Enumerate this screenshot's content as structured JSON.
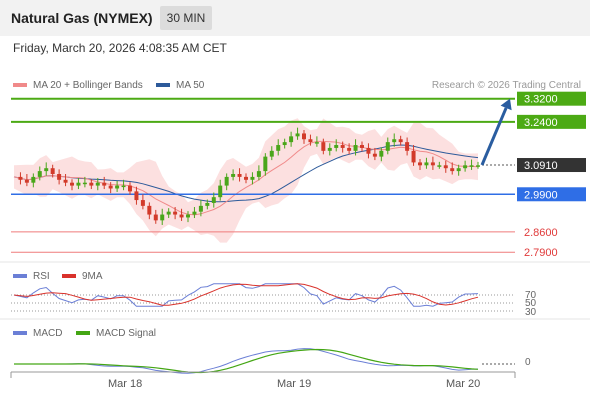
{
  "header": {
    "title": "Natural Gas (NYMEX)",
    "timeframe": "30 MIN"
  },
  "datetime": "Friday, March 20, 2026 4:08:35 AM CET",
  "legend": {
    "ma20_bb": "MA 20 + Bollinger Bands",
    "ma50": "MA 50",
    "credit": "Research © 2026 Trading Central"
  },
  "rsi_legend": {
    "rsi": "RSI",
    "ma9": "9MA"
  },
  "macd_legend": {
    "macd": "MACD",
    "signal": "MACD Signal"
  },
  "colors": {
    "ma20": "#f08a8a",
    "ma50": "#2d5a9a",
    "bb_fill": "#fbdada",
    "target": "#4caa14",
    "pivot": "#2f6ee6",
    "support": "#ef7b7b",
    "current": "#333333",
    "rsi": "#6b7fd6",
    "rsi_ma": "#d9322b",
    "macd": "#6b7fd6",
    "macd_signal": "#44a614",
    "bull": "#4aa61a",
    "bear": "#d23a2a",
    "arrow": "#2a5da0"
  },
  "chart_data": {
    "type": "candlestick",
    "x_ticks": [
      "Mar 18",
      "Mar 19",
      "Mar 20"
    ],
    "price_range": [
      2.77,
      3.35
    ],
    "levels": [
      {
        "value": 3.32,
        "label": "3.3200",
        "kind": "target"
      },
      {
        "value": 3.24,
        "label": "3.2400",
        "kind": "target"
      },
      {
        "value": 3.091,
        "label": "3.0910",
        "kind": "current"
      },
      {
        "value": 2.99,
        "label": "2.9900",
        "kind": "pivot"
      },
      {
        "value": 2.86,
        "label": "2.8600",
        "kind": "support"
      },
      {
        "value": 2.79,
        "label": "2.7900",
        "kind": "support"
      }
    ],
    "close_path": [
      3.05,
      3.04,
      3.03,
      3.05,
      3.07,
      3.08,
      3.06,
      3.04,
      3.03,
      3.02,
      3.03,
      3.03,
      3.02,
      3.03,
      3.02,
      3.01,
      3.02,
      3.02,
      3.0,
      2.97,
      2.95,
      2.92,
      2.9,
      2.92,
      2.93,
      2.92,
      2.91,
      2.92,
      2.93,
      2.95,
      2.96,
      2.98,
      3.02,
      3.05,
      3.06,
      3.05,
      3.04,
      3.05,
      3.07,
      3.12,
      3.14,
      3.16,
      3.17,
      3.19,
      3.2,
      3.18,
      3.17,
      3.17,
      3.14,
      3.15,
      3.16,
      3.15,
      3.14,
      3.16,
      3.15,
      3.13,
      3.12,
      3.14,
      3.17,
      3.18,
      3.17,
      3.14,
      3.1,
      3.09,
      3.1,
      3.09,
      3.09,
      3.08,
      3.07,
      3.08,
      3.09,
      3.09,
      3.09
    ],
    "projection": {
      "from": 3.091,
      "to": 3.32
    },
    "rsi": {
      "levels": [
        70,
        50,
        30
      ]
    },
    "macd": {
      "zero_label": "0"
    }
  },
  "price_labels": {
    "l1": "3.3200",
    "l2": "3.2400",
    "l3": "3.0910",
    "l4": "2.9900",
    "l5": "2.8600",
    "l6": "2.7900"
  },
  "rsi_levels": {
    "r70": "70",
    "r50": "50",
    "r30": "30"
  },
  "macd_zero": "0",
  "x_ticks": {
    "t1": "Mar 18",
    "t2": "Mar 19",
    "t3": "Mar 20"
  }
}
